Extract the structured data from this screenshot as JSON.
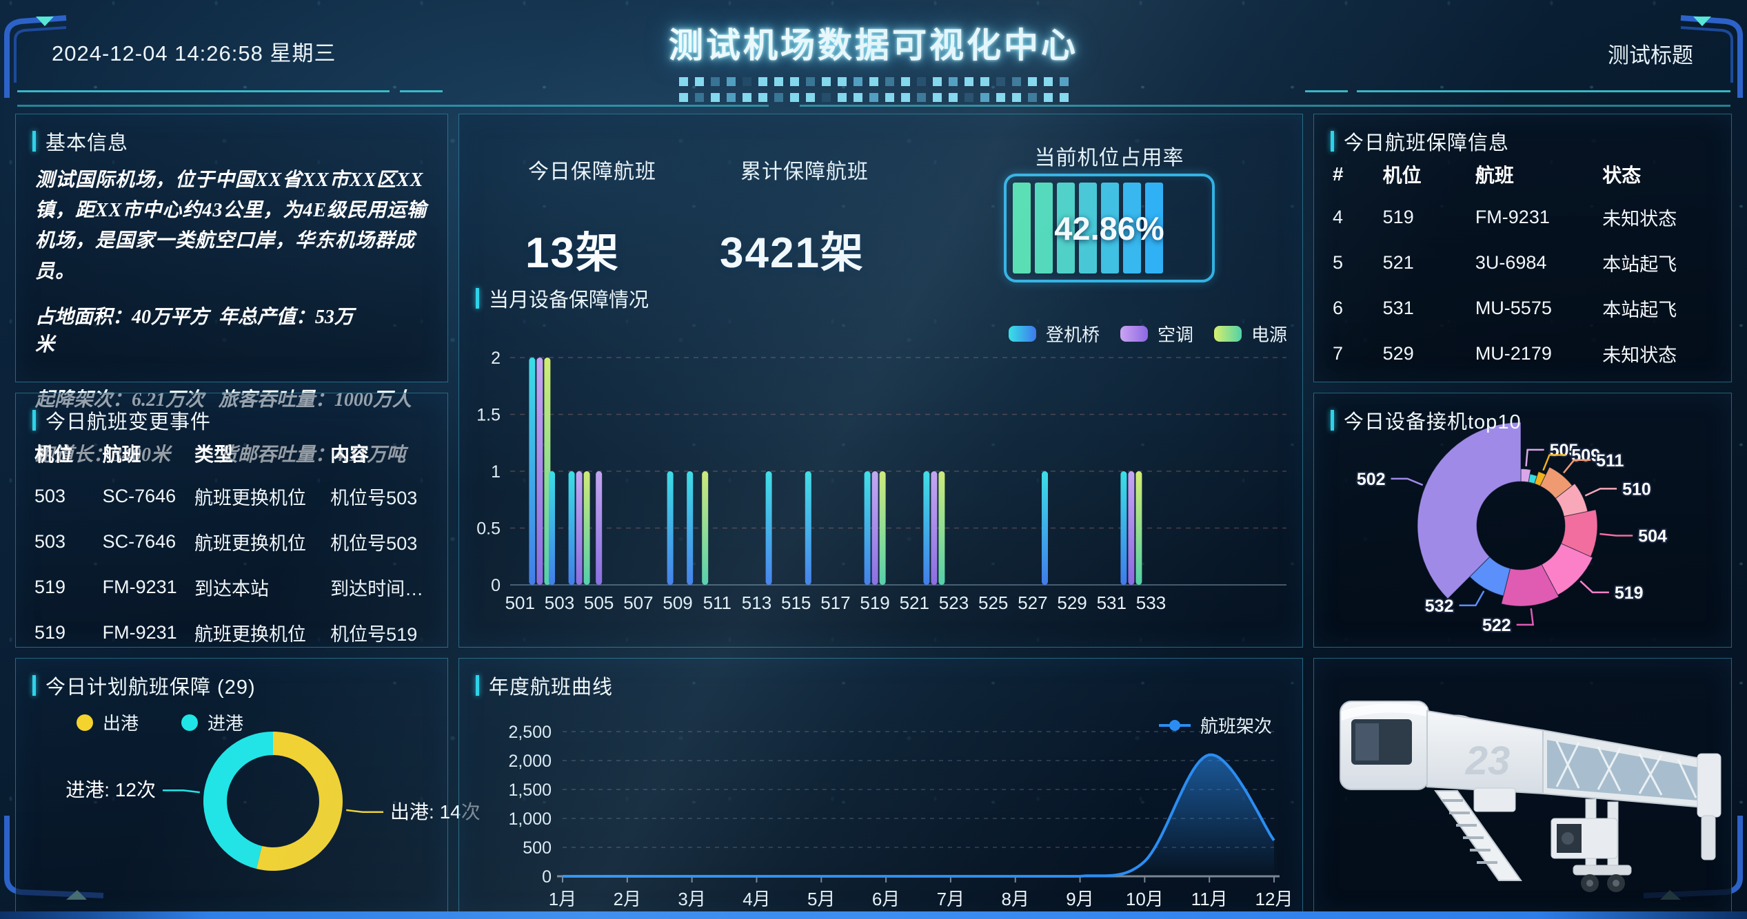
{
  "header": {
    "datetime": "2024-12-04 14:26:58 星期三",
    "title": "测试机场数据可视化中心",
    "right_title": "测试标题"
  },
  "panels": {
    "basic_info": {
      "title": "基本信息",
      "description": "测试国际机场，位于中国XX省XX市XX区XX镇，距XX市中心约43公里，为4E级民用运输机场，是国家一类航空口岸，华东机场群成员。",
      "stats": [
        {
          "label": "占地面积",
          "value": "40万平方米"
        },
        {
          "label": "年总产值",
          "value": "53万"
        },
        {
          "label": "起降架次",
          "value": "6.21万次"
        },
        {
          "label": "旅客吞吐量",
          "value": "1000万人"
        },
        {
          "label": "跑道长",
          "value": "3400米"
        },
        {
          "label": "货邮吞吐量",
          "value": "4.11万吨"
        }
      ]
    },
    "flight_changes": {
      "title": "今日航班变更事件",
      "columns": [
        "机位",
        "航班",
        "类型",
        "内容"
      ],
      "rows": [
        [
          "503",
          "SC-7646",
          "航班更换机位",
          "机位号503"
        ],
        [
          "503",
          "SC-7646",
          "航班更换机位",
          "机位号503"
        ],
        [
          "519",
          "FM-9231",
          "到达本站",
          "到达时间：202412..."
        ],
        [
          "519",
          "FM-9231",
          "航班更换机位",
          "机位号519"
        ]
      ]
    },
    "planned_flights": {
      "title": "今日计划航班保障 (29)"
    },
    "stats_overview": {
      "today_label": "今日保障航班",
      "today_value": "13架",
      "total_label": "累计保障航班",
      "total_value": "3421架",
      "occupancy_label": "当前机位占用率",
      "occupancy_value": "42.86%"
    },
    "equipment_month": {
      "title": "当月设备保障情况"
    },
    "annual_curve": {
      "title": "年度航班曲线"
    },
    "flight_support": {
      "title": "今日航班保障信息",
      "columns": [
        "#",
        "机位",
        "航班",
        "状态"
      ],
      "rows": [
        [
          "4",
          "519",
          "FM-9231",
          "未知状态"
        ],
        [
          "5",
          "521",
          "3U-6984",
          "本站起飞"
        ],
        [
          "6",
          "531",
          "MU-5575",
          "本站起飞"
        ],
        [
          "7",
          "529",
          "MU-2179",
          "未知状态"
        ]
      ]
    },
    "device_top10": {
      "title": "今日设备接机top10"
    },
    "bridge": {
      "number": "23"
    }
  },
  "chart_data": [
    {
      "id": "equipment_month",
      "type": "bar",
      "title": "当月设备保障情况",
      "categories_start": 501,
      "categories_end": 534,
      "x_tick_labels": [
        "501",
        "503",
        "505",
        "507",
        "509",
        "511",
        "513",
        "515",
        "517",
        "519",
        "521",
        "523",
        "525",
        "527",
        "529",
        "531",
        "533"
      ],
      "ytick_labels": [
        "0",
        "0.5",
        "1",
        "1.5",
        "2"
      ],
      "ylim": [
        0,
        2
      ],
      "grid": "dashed",
      "legend_position": "top-right",
      "series": [
        {
          "name": "登机桥",
          "color_top": "#38e1e6",
          "color_bottom": "#3e79ec",
          "values": {
            "502": 2,
            "503": 1,
            "504": 1,
            "509": 1,
            "510": 1,
            "514": 1,
            "516": 1,
            "519": 1,
            "522": 1,
            "528": 1,
            "532": 1
          }
        },
        {
          "name": "空调",
          "color_top": "#cba4f2",
          "color_bottom": "#8d68e2",
          "values": {
            "502": 2,
            "504": 1,
            "505": 1,
            "519": 1,
            "522": 1,
            "532": 1
          }
        },
        {
          "name": "电源",
          "color_top": "#d8ee6e",
          "color_bottom": "#52d2a6",
          "values": {
            "502": 2,
            "504": 1,
            "510": 1,
            "519": 1,
            "522": 1,
            "532": 1
          }
        }
      ]
    },
    {
      "id": "planned_flights",
      "type": "pie",
      "title": "今日计划航班保障 (29)",
      "total": 29,
      "slices": [
        {
          "name": "出港",
          "value": 14,
          "label": "出港: 14次",
          "color": "#f5d32e"
        },
        {
          "name": "进港",
          "value": 12,
          "label": "进港: 12次",
          "color": "#20e5e6"
        }
      ],
      "legend_position": "top-left"
    },
    {
      "id": "device_top10",
      "type": "rose_pie",
      "title": "今日设备接机top10",
      "slices": [
        {
          "name": "505",
          "angle": 10,
          "radius": 0.55,
          "color": "#d9a7e8"
        },
        {
          "name": "",
          "angle": 8,
          "radius": 0.5,
          "color": "#35dde0"
        },
        {
          "name": "509",
          "angle": 8,
          "radius": 0.55,
          "color": "#f0b11c"
        },
        {
          "name": "511",
          "angle": 26,
          "radius": 0.63,
          "color": "#f09a72"
        },
        {
          "name": "510",
          "angle": 26,
          "radius": 0.66,
          "color": "#f8a8b8"
        },
        {
          "name": "504",
          "angle": 36,
          "radius": 0.74,
          "color": "#f26e9e"
        },
        {
          "name": "519",
          "angle": 38,
          "radius": 0.76,
          "color": "#fb80c8"
        },
        {
          "name": "522",
          "angle": 42,
          "radius": 0.78,
          "color": "#df5cb2"
        },
        {
          "name": "532",
          "angle": 31,
          "radius": 0.7,
          "color": "#5b8ff9"
        },
        {
          "name": "502",
          "angle": 135,
          "radius": 1.0,
          "color": "#a08ae8"
        }
      ]
    },
    {
      "id": "annual_curve",
      "type": "line",
      "title": "年度航班曲线",
      "series_name": "航班架次",
      "line_color": "#2b8df2",
      "categories": [
        "1月",
        "2月",
        "3月",
        "4月",
        "5月",
        "6月",
        "7月",
        "8月",
        "9月",
        "10月",
        "11月",
        "12月"
      ],
      "values": [
        0,
        0,
        0,
        0,
        0,
        0,
        0,
        0,
        0,
        260,
        2100,
        620
      ],
      "ytick_labels": [
        "0",
        "500",
        "1,000",
        "1,500",
        "2,000",
        "2,500"
      ],
      "ylim": [
        0,
        2500
      ],
      "grid": "dashed",
      "legend_position": "top-right"
    }
  ],
  "colors": {
    "accent": "#2fd2e8",
    "battery_border": "#2fb2e4",
    "battery_cells": [
      "#55e2ae",
      "#50dcb8",
      "#4bd3c6",
      "#44c9d6",
      "#3cc1e4",
      "#33b8f0",
      "#2bb1f8"
    ]
  }
}
